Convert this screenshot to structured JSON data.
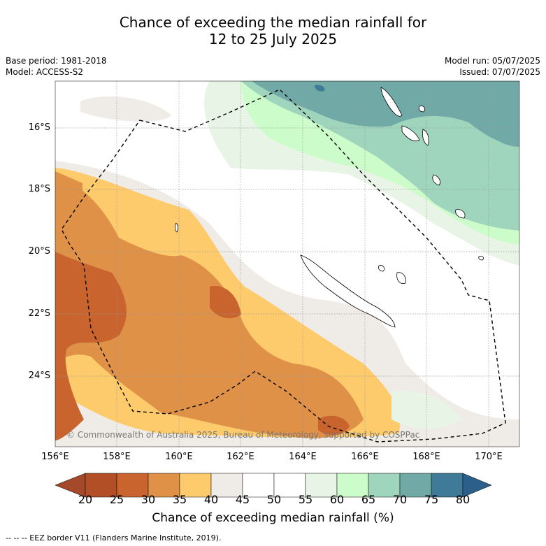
{
  "title_line1": "Chance of exceeding the median rainfall for",
  "title_line2": "12 to 25 July 2025",
  "base_period": "Base period: 1981-2018",
  "model": "Model: ACCESS-S2",
  "model_run": "Model run: 05/07/2025",
  "issued": "Issued: 07/07/2025",
  "copyright": "© Commonwealth of Australia 2025, Bureau of Meteorology, supported by COSPPac",
  "footnote": "-- -- -- EEZ border V11 (Flanders Marine Institute, 2019).",
  "lat_labels": [
    "16°S",
    "18°S",
    "20°S",
    "22°S",
    "24°S"
  ],
  "lon_labels": [
    "156°E",
    "158°E",
    "160°E",
    "162°E",
    "164°E",
    "166°E",
    "168°E",
    "170°E"
  ],
  "colorbar": {
    "title": "Chance of exceeding median rainfall (%)",
    "ticks": [
      "20",
      "25",
      "30",
      "35",
      "40",
      "45",
      "50",
      "55",
      "60",
      "65",
      "70",
      "75",
      "80"
    ],
    "colors": [
      "#a4492a",
      "#b34f27",
      "#c9642f",
      "#df9147",
      "#fdcb6b",
      "#efebe6",
      "#ffffff",
      "#ffffff",
      "#e8f5e6",
      "#ccfcc9",
      "#9fd4bd",
      "#70a9a6",
      "#3f7a99",
      "#2c5f8a"
    ]
  },
  "legend_item": "EEZ border V11 (Flanders Marine Institute, 2019)"
}
